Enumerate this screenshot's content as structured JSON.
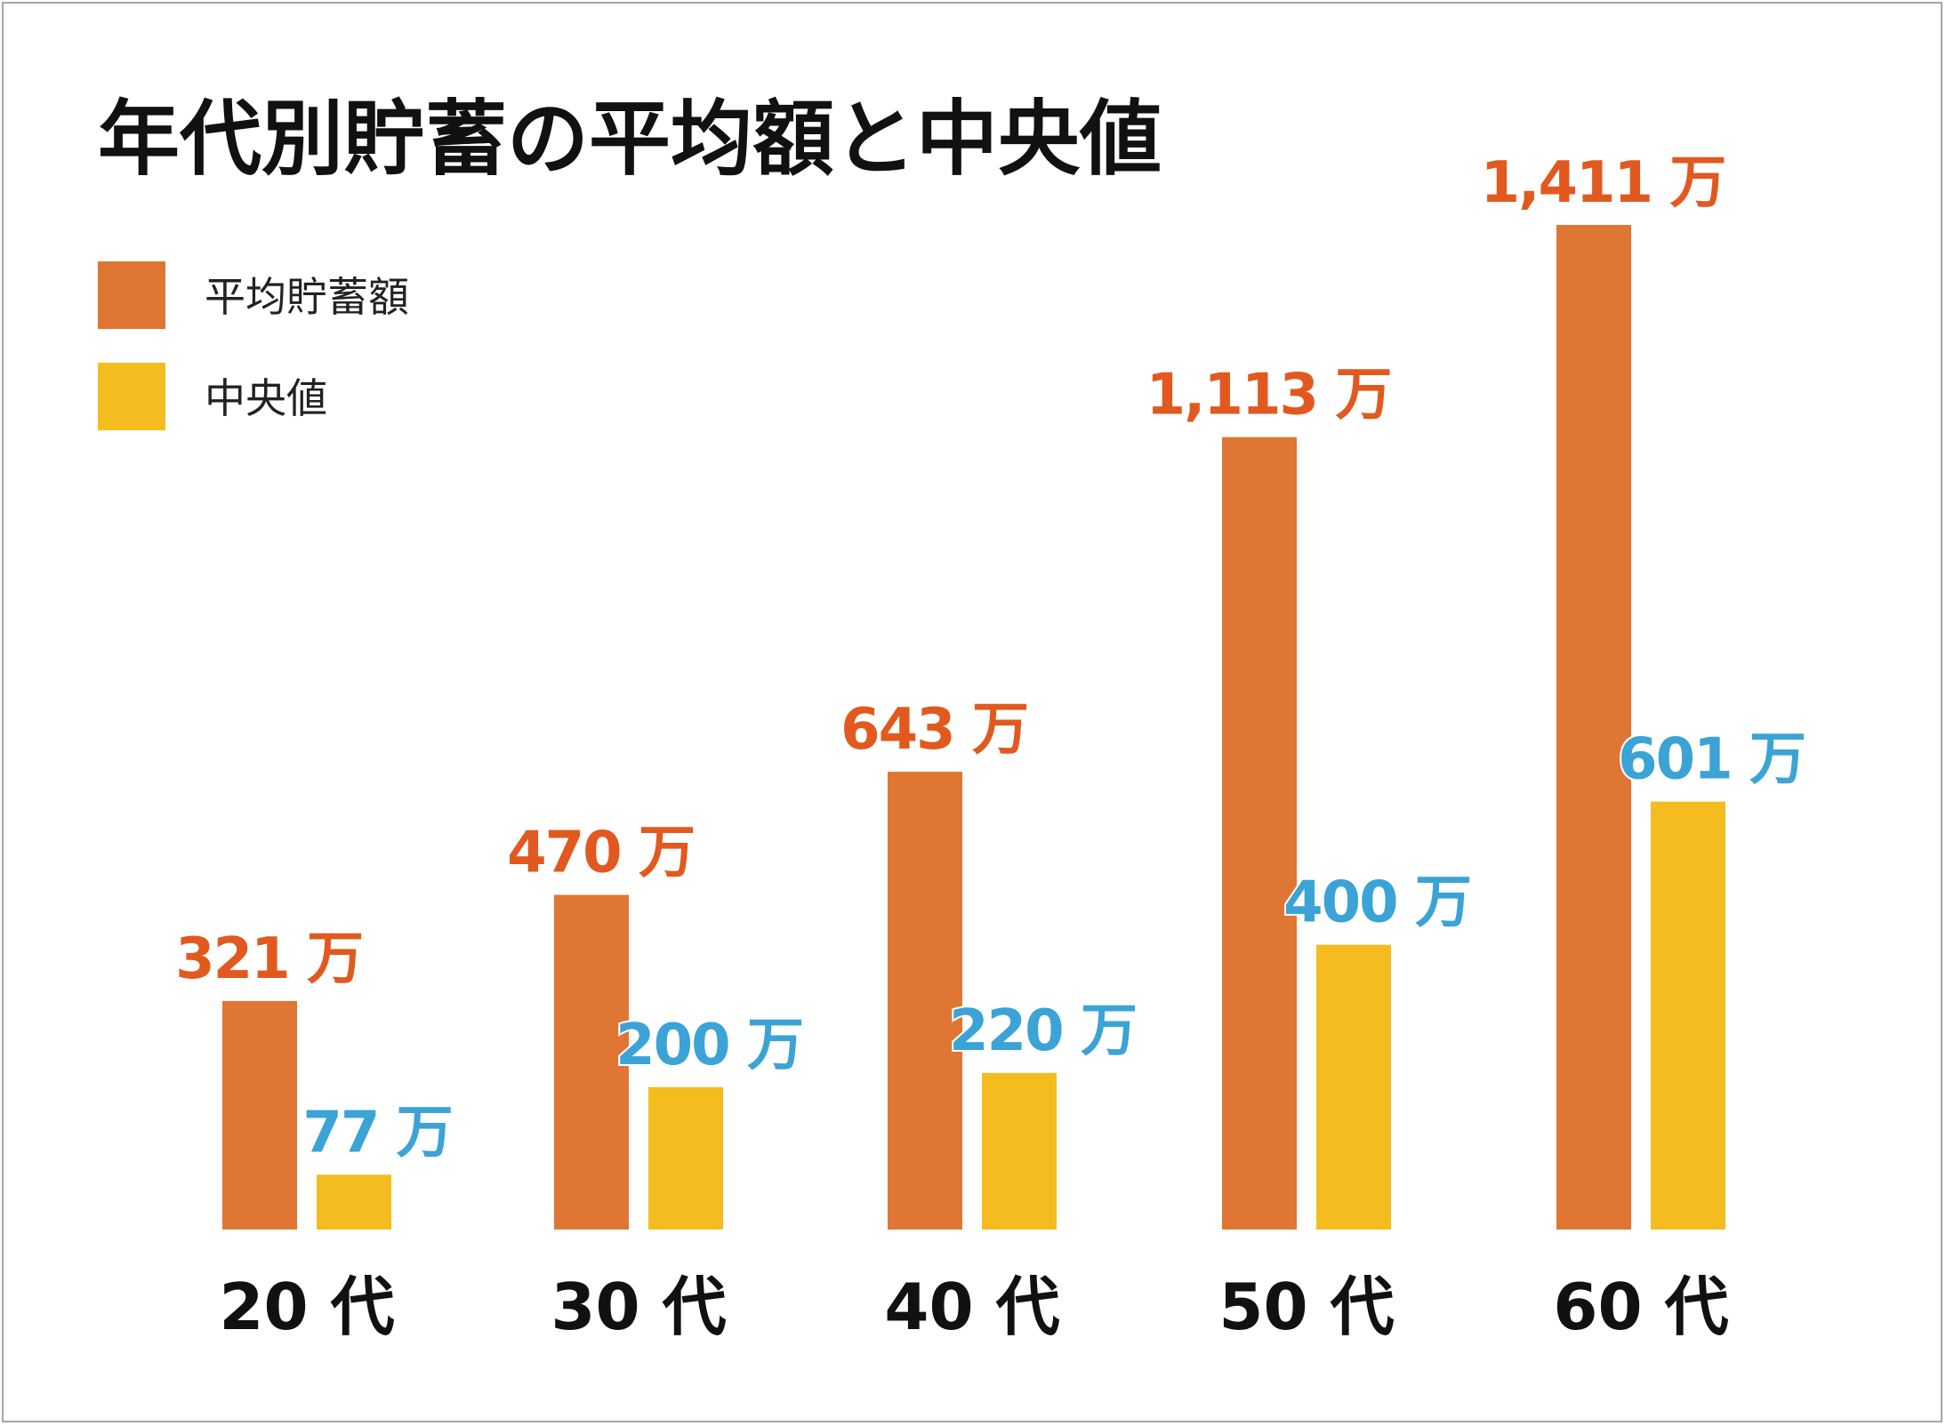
{
  "chart_data": {
    "type": "bar",
    "title": "年代別貯蓄の平均額と中央値",
    "categories": [
      "20 代",
      "30 代",
      "40 代",
      "50 代",
      "60 代"
    ],
    "series": [
      {
        "name": "平均貯蓄額",
        "values": [
          321,
          470,
          643,
          1113,
          1411
        ],
        "labels": [
          "321 万",
          "470 万",
          "643 万",
          "1,113 万",
          "1,411 万"
        ],
        "color": "#E07634",
        "label_color": "#E2591F"
      },
      {
        "name": "中央値",
        "values": [
          77,
          200,
          220,
          400,
          601
        ],
        "labels": [
          "77 万",
          "200 万",
          "220 万",
          "400 万",
          "601 万"
        ],
        "color": "#F4BC1F",
        "label_color": "#3BA3D6"
      }
    ],
    "unit": "万",
    "ylim": [
      0,
      1411
    ],
    "grid": false,
    "legend_position": "top-left"
  }
}
